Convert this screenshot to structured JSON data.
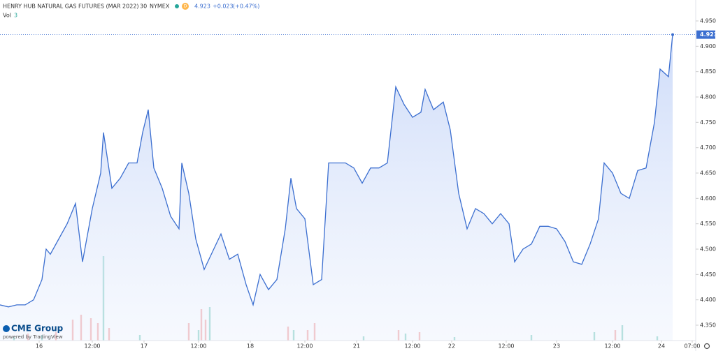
{
  "header": {
    "title": "HENRY HUB NATURAL GAS FUTURES (MAR 2022)",
    "interval": "30",
    "exchange": "NYMEX",
    "badge": "D",
    "change": "+0.023",
    "change_pct": "(+0.47%)",
    "volume_label": "Vol",
    "volume_last": "3"
  },
  "branding": {
    "logo": "CME Group",
    "powered": "powered by TradingView"
  },
  "chart_data": {
    "type": "area",
    "series": [
      {
        "name": "Price",
        "color": "#3c6fd0",
        "x": [
          0,
          12,
          24,
          36,
          48,
          60,
          66,
          72,
          84,
          96,
          108,
          118,
          132,
          144,
          148,
          160,
          172,
          184,
          196,
          204,
          212,
          220,
          232,
          244,
          256,
          260,
          270,
          280,
          292,
          304,
          316,
          328,
          340,
          352,
          362,
          372,
          384,
          396,
          408,
          416,
          424,
          436,
          448,
          460,
          470,
          482,
          494,
          506,
          518,
          530,
          542,
          554,
          566,
          578,
          590,
          602,
          608,
          620,
          634,
          644,
          656,
          668,
          680,
          692,
          704,
          716,
          728,
          736,
          748,
          760,
          772,
          784,
          796,
          808,
          820,
          832,
          844,
          856,
          864,
          876,
          888,
          900,
          912,
          924,
          936,
          944,
          956,
          962
        ],
        "values": [
          4.39,
          4.386,
          4.39,
          4.39,
          4.4,
          4.44,
          4.5,
          4.49,
          4.52,
          4.55,
          4.59,
          4.475,
          4.58,
          4.65,
          4.73,
          4.62,
          4.64,
          4.67,
          4.67,
          4.73,
          4.775,
          4.66,
          4.62,
          4.565,
          4.54,
          4.67,
          4.61,
          4.52,
          4.46,
          4.495,
          4.53,
          4.48,
          4.49,
          4.43,
          4.39,
          4.45,
          4.42,
          4.44,
          4.54,
          4.64,
          4.58,
          4.56,
          4.43,
          4.44,
          4.67,
          4.67,
          4.67,
          4.66,
          4.63,
          4.66,
          4.66,
          4.67,
          4.82,
          4.785,
          4.76,
          4.77,
          4.815,
          4.775,
          4.79,
          4.735,
          4.61,
          4.54,
          4.58,
          4.57,
          4.55,
          4.57,
          4.55,
          4.475,
          4.5,
          4.51,
          4.545,
          4.545,
          4.54,
          4.515,
          4.475,
          4.47,
          4.51,
          4.56,
          4.67,
          4.65,
          4.61,
          4.6,
          4.655,
          4.66,
          4.75,
          4.855,
          4.84,
          4.923
        ]
      }
    ],
    "last_price": {
      "value": 4.923,
      "label": "4.923"
    },
    "volume": [
      {
        "name": "up",
        "color": "#7fcdc0",
        "x": [
          20,
          60,
          148,
          200,
          284,
          300,
          420,
          520,
          580,
          650,
          760,
          850,
          890,
          940
        ],
        "values": [
          5,
          8,
          121,
          8,
          15,
          48,
          15,
          6,
          10,
          5,
          8,
          12,
          22,
          6
        ]
      },
      {
        "name": "down",
        "color": "#f2a0a0",
        "x": [
          40,
          80,
          104,
          116,
          130,
          140,
          156,
          270,
          288,
          294,
          412,
          440,
          450,
          570,
          600,
          880
        ],
        "values": [
          10,
          12,
          30,
          37,
          32,
          25,
          18,
          25,
          45,
          30,
          20,
          15,
          25,
          15,
          12,
          15
        ]
      }
    ],
    "vlim": [
      0,
      130
    ],
    "xlim": [
      0,
      996
    ],
    "xticks": [
      {
        "value": 56,
        "label": "16"
      },
      {
        "value": 132,
        "label": "12:00"
      },
      {
        "value": 206,
        "label": "17"
      },
      {
        "value": 284,
        "label": "12:00"
      },
      {
        "value": 358,
        "label": "18"
      },
      {
        "value": 436,
        "label": "12:00"
      },
      {
        "value": 510,
        "label": "21"
      },
      {
        "value": 590,
        "label": "12:00"
      },
      {
        "value": 646,
        "label": "22"
      },
      {
        "value": 724,
        "label": "12:00"
      },
      {
        "value": 796,
        "label": "23"
      },
      {
        "value": 876,
        "label": "12:00"
      },
      {
        "value": 946,
        "label": "24"
      },
      {
        "value": 990,
        "label": "07:00"
      }
    ],
    "ylim": [
      4.35,
      4.95
    ],
    "yticks": [
      {
        "value": 4.35,
        "label": "4.350"
      },
      {
        "value": 4.4,
        "label": "4.400"
      },
      {
        "value": 4.45,
        "label": "4.450"
      },
      {
        "value": 4.5,
        "label": "4.500"
      },
      {
        "value": 4.55,
        "label": "4.550"
      },
      {
        "value": 4.6,
        "label": "4.600"
      },
      {
        "value": 4.65,
        "label": "4.650"
      },
      {
        "value": 4.7,
        "label": "4.700"
      },
      {
        "value": 4.75,
        "label": "4.750"
      },
      {
        "value": 4.8,
        "label": "4.800"
      },
      {
        "value": 4.85,
        "label": "4.850"
      },
      {
        "value": 4.9,
        "label": "4.900"
      },
      {
        "value": 4.95,
        "label": "4.950"
      }
    ]
  }
}
